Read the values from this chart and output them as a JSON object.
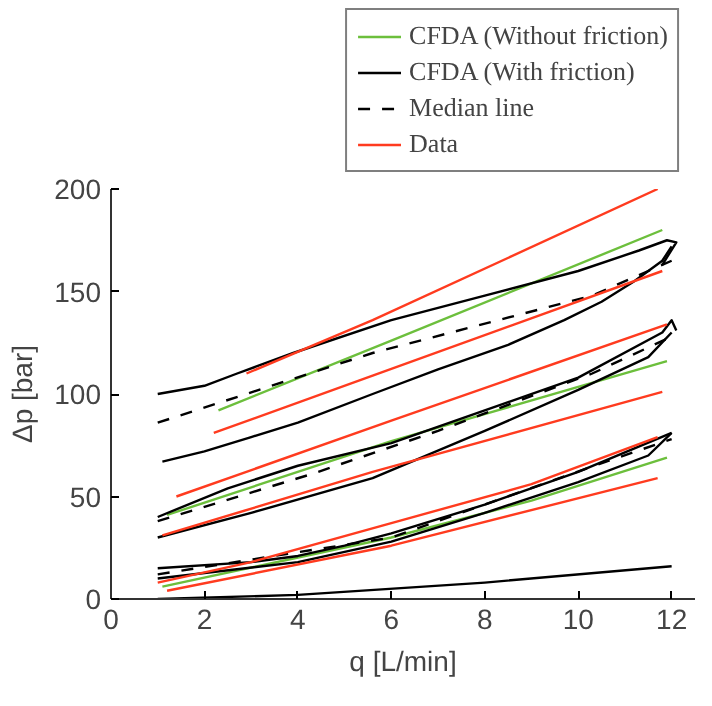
{
  "chart_data": {
    "type": "line",
    "xlabel": "q [L/min]",
    "ylabel": "Δp [bar]",
    "xlim": [
      0,
      12.5
    ],
    "ylim": [
      0,
      200
    ],
    "xticks": [
      0,
      2,
      4,
      6,
      8,
      10,
      12
    ],
    "yticks": [
      0,
      50,
      100,
      150,
      200
    ],
    "grid": false,
    "legend": "top right",
    "series": [
      {
        "name": "CFDA (Without friction)",
        "color": "#6cbf3c",
        "line_style": "solid",
        "x": [
          2.3,
          6,
          11.8
        ],
        "values": [
          92,
          126,
          180
        ]
      },
      {
        "color": "#6cbf3c",
        "line_style": "solid",
        "x": [
          1.2,
          6,
          11.9
        ],
        "values": [
          41,
          77,
          116
        ]
      },
      {
        "color": "#6cbf3c",
        "line_style": "solid",
        "x": [
          1.1,
          6,
          9,
          11.9
        ],
        "values": [
          6,
          30,
          48,
          69
        ]
      },
      {
        "name": "CFDA (With friction)",
        "color": "#000000",
        "line_style": "solid",
        "x": [
          1.0,
          2.0,
          2.7,
          3.9,
          6,
          8,
          10,
          11.3,
          11.9,
          12.1,
          11.8
        ],
        "values": [
          100,
          104,
          110,
          120,
          136,
          148,
          160,
          170,
          175,
          174,
          163
        ]
      },
      {
        "color": "#000000",
        "line_style": "solid",
        "x": [
          1.1,
          2,
          3,
          4,
          5.6,
          7,
          8.5,
          9.7,
          10.5,
          11.2,
          11.8,
          12.0
        ],
        "values": [
          67,
          72,
          79,
          86,
          100,
          112,
          124,
          136,
          145,
          155,
          165,
          172
        ]
      },
      {
        "color": "#000000",
        "line_style": "solid",
        "x": [
          1,
          2.5,
          4,
          6,
          8,
          10,
          11.8,
          12,
          12.1
        ],
        "values": [
          40,
          54,
          65,
          76,
          92,
          108,
          130,
          136,
          131
        ]
      },
      {
        "color": "#000000",
        "line_style": "solid",
        "x": [
          1,
          3,
          5.6,
          8,
          10,
          11.5,
          12
        ],
        "values": [
          30,
          42,
          59,
          82,
          102,
          118,
          130
        ]
      },
      {
        "color": "#000000",
        "line_style": "solid",
        "x": [
          1.0,
          3,
          4,
          5,
          6,
          8,
          10,
          12
        ],
        "values": [
          15,
          18,
          21,
          26,
          32,
          46,
          62,
          81
        ]
      },
      {
        "color": "#000000",
        "line_style": "solid",
        "x": [
          1.0,
          4,
          6,
          8,
          10,
          11.5,
          12
        ],
        "values": [
          10,
          18,
          28,
          42,
          57,
          70,
          81
        ]
      },
      {
        "color": "#000000",
        "line_style": "solid",
        "x": [
          1,
          4,
          8,
          12
        ],
        "values": [
          0,
          2,
          8,
          16
        ]
      },
      {
        "name": "Median line",
        "color": "#000000",
        "line_style": "dashed",
        "x": [
          1.0,
          5.6,
          10.3,
          12
        ],
        "values": [
          86,
          120,
          148,
          165
        ]
      },
      {
        "color": "#000000",
        "line_style": "dashed",
        "x": [
          1,
          4.3,
          7,
          10.3,
          12
        ],
        "values": [
          38,
          61,
          82,
          110,
          128
        ]
      },
      {
        "color": "#000000",
        "line_style": "dashed",
        "x": [
          1.0,
          6,
          10.6,
          12
        ],
        "values": [
          12,
          30,
          67,
          78
        ]
      },
      {
        "name": "Data",
        "color": "#ff3b1f",
        "line_style": "solid",
        "x": [
          2.9,
          5.6,
          11.7
        ],
        "values": [
          110,
          136,
          200
        ]
      },
      {
        "color": "#ff3b1f",
        "line_style": "solid",
        "x": [
          2.2,
          5.6,
          11.8
        ],
        "values": [
          81,
          109,
          160
        ]
      },
      {
        "color": "#ff3b1f",
        "line_style": "solid",
        "x": [
          1.4,
          6,
          11.9
        ],
        "values": [
          50,
          87,
          134
        ]
      },
      {
        "color": "#ff3b1f",
        "line_style": "solid",
        "x": [
          1.1,
          5.6,
          11.8
        ],
        "values": [
          31,
          62,
          101
        ]
      },
      {
        "color": "#ff3b1f",
        "line_style": "solid",
        "x": [
          1.0,
          3,
          6,
          9,
          11.7
        ],
        "values": [
          8,
          18,
          37,
          56,
          79
        ]
      },
      {
        "color": "#ff3b1f",
        "line_style": "solid",
        "x": [
          1.2,
          6,
          11.7
        ],
        "values": [
          4,
          26,
          59
        ]
      }
    ]
  }
}
